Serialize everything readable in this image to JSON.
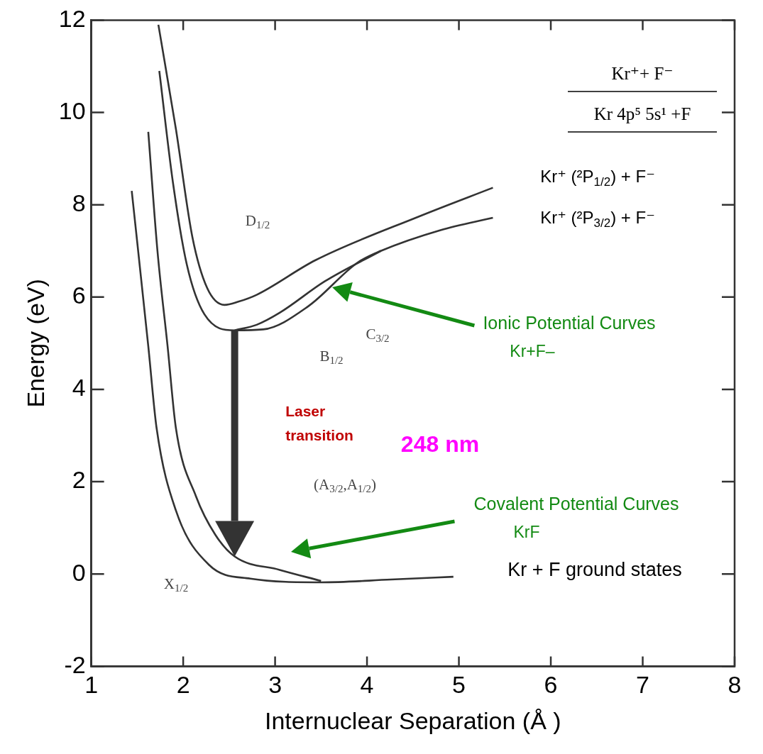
{
  "chart_data": {
    "type": "line",
    "xlabel": "Internuclear Separation (Å )",
    "ylabel": "Energy (eV)",
    "xlim": [
      1,
      8
    ],
    "xticks": [
      1,
      2,
      3,
      4,
      5,
      6,
      7,
      8
    ],
    "ylim": [
      -2,
      12
    ],
    "yticks": [
      -2,
      0,
      2,
      4,
      6,
      8,
      10,
      12
    ],
    "grid": false,
    "legend": false,
    "marker": "none",
    "line_style": "solid",
    "series": [
      {
        "color": "#333333",
        "x": [
          1.73,
          1.92,
          2.1,
          2.26,
          2.45,
          2.6,
          2.8,
          3.44,
          4.57,
          5.37
        ],
        "values": [
          11.9,
          9.65,
          7.3,
          6.2,
          5.83,
          5.9,
          6.05,
          6.8,
          7.75,
          8.37
        ]
      },
      {
        "color": "#333333",
        "x": [
          2.56,
          2.8,
          3.05,
          3.54,
          4.15
        ],
        "values": [
          5.28,
          5.4,
          5.66,
          6.34,
          7.0
        ]
      },
      {
        "color": "#333333",
        "x": [
          1.74,
          1.89,
          2.04,
          2.23,
          2.56,
          2.87,
          3.36,
          3.9,
          4.15,
          4.8,
          5.37
        ],
        "values": [
          10.9,
          8.46,
          6.7,
          5.63,
          5.28,
          5.3,
          5.8,
          6.75,
          7.0,
          7.45,
          7.72
        ]
      },
      {
        "color": "#333333",
        "x": [
          1.62,
          1.72,
          1.83,
          1.92,
          2.14,
          2.35,
          2.56,
          3.05,
          3.5
        ],
        "values": [
          9.58,
          7.0,
          4.94,
          3.17,
          1.68,
          0.85,
          0.38,
          0.09,
          -0.15
        ]
      },
      {
        "color": "#333333",
        "x": [
          1.44,
          1.62,
          1.71,
          1.92,
          2.28,
          2.73,
          3.5,
          4.26,
          4.94
        ],
        "values": [
          8.3,
          4.94,
          3.17,
          1.38,
          0.2,
          -0.1,
          -0.18,
          -0.12,
          -0.06
        ]
      }
    ],
    "annotations": [
      "D$_{1/2}$",
      "C$_{3/2}$",
      "B$_{1/2}$",
      "(A$_{3/2}$,A$_{1/2}$)",
      "X$_{1/2}$",
      "Kr⁺ (²P$_{1/2}$) + F⁻",
      "Kr⁺ (²P$_{3/2}$) + F⁻",
      "Kr + F ground states",
      "Ionic Potential Curves",
      "Kr+F–",
      "Covalent Potential Curves",
      "KrF",
      "Laser\ntransition",
      "248 nm",
      "Kr⁺+ F⁻",
      "Kr 4p⁵ 5s¹ +F"
    ]
  }
}
